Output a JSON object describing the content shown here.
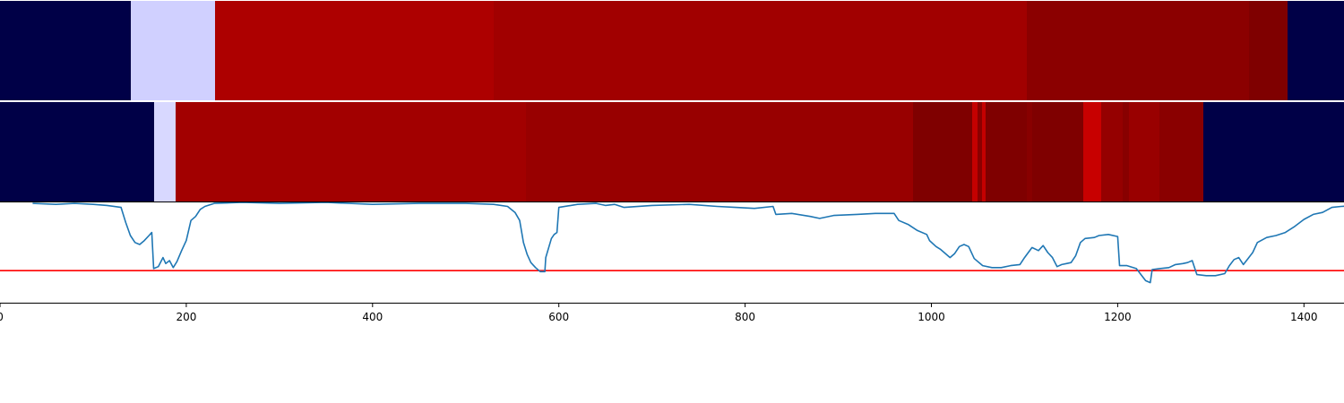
{
  "chart_data": [
    {
      "type": "heatmap",
      "segments": [
        {
          "start": 0,
          "end": 140,
          "color": "#000047"
        },
        {
          "start": 140,
          "end": 231,
          "color": "#d0d0ff"
        },
        {
          "start": 231,
          "end": 530,
          "color": "#ad0000"
        },
        {
          "start": 530,
          "end": 1102,
          "color": "#a10000"
        },
        {
          "start": 1102,
          "end": 1341,
          "color": "#8b0000"
        },
        {
          "start": 1341,
          "end": 1382,
          "color": "#7f0000"
        },
        {
          "start": 1382,
          "end": 1443,
          "color": "#000047"
        }
      ]
    },
    {
      "type": "heatmap",
      "segments": [
        {
          "start": 0,
          "end": 165,
          "color": "#000047"
        },
        {
          "start": 165,
          "end": 189,
          "color": "#d8d8ff"
        },
        {
          "start": 189,
          "end": 565,
          "color": "#a20000"
        },
        {
          "start": 565,
          "end": 980,
          "color": "#980000"
        },
        {
          "start": 980,
          "end": 1044,
          "color": "#7f0000"
        },
        {
          "start": 1044,
          "end": 1050,
          "color": "#c40000"
        },
        {
          "start": 1050,
          "end": 1054,
          "color": "#8a0000"
        },
        {
          "start": 1054,
          "end": 1058,
          "color": "#c40000"
        },
        {
          "start": 1058,
          "end": 1102,
          "color": "#7f0000"
        },
        {
          "start": 1102,
          "end": 1108,
          "color": "#880000"
        },
        {
          "start": 1108,
          "end": 1163,
          "color": "#7f0000"
        },
        {
          "start": 1163,
          "end": 1182,
          "color": "#c80000"
        },
        {
          "start": 1182,
          "end": 1205,
          "color": "#950000"
        },
        {
          "start": 1205,
          "end": 1212,
          "color": "#880000"
        },
        {
          "start": 1212,
          "end": 1245,
          "color": "#990000"
        },
        {
          "start": 1245,
          "end": 1292,
          "color": "#8a0000"
        },
        {
          "start": 1292,
          "end": 1443,
          "color": "#000047"
        }
      ]
    },
    {
      "type": "line",
      "xlim": [
        0,
        1443
      ],
      "ylim": [
        0,
        1
      ],
      "x_ticks": [
        0,
        200,
        400,
        600,
        800,
        1000,
        1200,
        1400
      ],
      "threshold": {
        "value": 0.32,
        "color": "#ff0000"
      },
      "series": [
        {
          "color": "#1f77b4",
          "points": [
            [
              35,
              0.99
            ],
            [
              60,
              0.98
            ],
            [
              80,
              0.99
            ],
            [
              100,
              0.98
            ],
            [
              115,
              0.97
            ],
            [
              130,
              0.95
            ],
            [
              135,
              0.8
            ],
            [
              140,
              0.67
            ],
            [
              145,
              0.6
            ],
            [
              150,
              0.58
            ],
            [
              155,
              0.62
            ],
            [
              160,
              0.67
            ],
            [
              163,
              0.7
            ],
            [
              165,
              0.34
            ],
            [
              170,
              0.36
            ],
            [
              175,
              0.45
            ],
            [
              178,
              0.39
            ],
            [
              182,
              0.42
            ],
            [
              186,
              0.35
            ],
            [
              190,
              0.41
            ],
            [
              195,
              0.52
            ],
            [
              200,
              0.62
            ],
            [
              205,
              0.82
            ],
            [
              210,
              0.86
            ],
            [
              215,
              0.93
            ],
            [
              220,
              0.96
            ],
            [
              230,
              0.99
            ],
            [
              260,
              1.0
            ],
            [
              300,
              0.99
            ],
            [
              350,
              1.0
            ],
            [
              400,
              0.98
            ],
            [
              450,
              0.99
            ],
            [
              500,
              0.99
            ],
            [
              530,
              0.98
            ],
            [
              545,
              0.96
            ],
            [
              553,
              0.9
            ],
            [
              558,
              0.82
            ],
            [
              562,
              0.6
            ],
            [
              566,
              0.48
            ],
            [
              570,
              0.4
            ],
            [
              575,
              0.35
            ],
            [
              580,
              0.31
            ],
            [
              585,
              0.31
            ],
            [
              586,
              0.45
            ],
            [
              592,
              0.64
            ],
            [
              595,
              0.68
            ],
            [
              598,
              0.7
            ],
            [
              600,
              0.95
            ],
            [
              620,
              0.98
            ],
            [
              640,
              0.99
            ],
            [
              650,
              0.97
            ],
            [
              660,
              0.98
            ],
            [
              670,
              0.95
            ],
            [
              700,
              0.97
            ],
            [
              740,
              0.98
            ],
            [
              770,
              0.96
            ],
            [
              790,
              0.95
            ],
            [
              810,
              0.94
            ],
            [
              830,
              0.96
            ],
            [
              833,
              0.88
            ],
            [
              850,
              0.89
            ],
            [
              870,
              0.86
            ],
            [
              880,
              0.84
            ],
            [
              895,
              0.87
            ],
            [
              920,
              0.88
            ],
            [
              940,
              0.89
            ],
            [
              960,
              0.89
            ],
            [
              965,
              0.82
            ],
            [
              975,
              0.78
            ],
            [
              985,
              0.72
            ],
            [
              995,
              0.68
            ],
            [
              998,
              0.62
            ],
            [
              1005,
              0.56
            ],
            [
              1010,
              0.53
            ],
            [
              1020,
              0.45
            ],
            [
              1025,
              0.49
            ],
            [
              1030,
              0.56
            ],
            [
              1035,
              0.58
            ],
            [
              1040,
              0.56
            ],
            [
              1046,
              0.44
            ],
            [
              1055,
              0.37
            ],
            [
              1065,
              0.35
            ],
            [
              1075,
              0.35
            ],
            [
              1085,
              0.37
            ],
            [
              1095,
              0.38
            ],
            [
              1100,
              0.45
            ],
            [
              1108,
              0.55
            ],
            [
              1115,
              0.52
            ],
            [
              1120,
              0.57
            ],
            [
              1125,
              0.5
            ],
            [
              1130,
              0.45
            ],
            [
              1135,
              0.36
            ],
            [
              1140,
              0.38
            ],
            [
              1145,
              0.39
            ],
            [
              1150,
              0.4
            ],
            [
              1155,
              0.47
            ],
            [
              1160,
              0.6
            ],
            [
              1165,
              0.64
            ],
            [
              1175,
              0.65
            ],
            [
              1180,
              0.67
            ],
            [
              1190,
              0.68
            ],
            [
              1200,
              0.66
            ],
            [
              1202,
              0.37
            ],
            [
              1210,
              0.37
            ],
            [
              1220,
              0.34
            ],
            [
              1225,
              0.28
            ],
            [
              1230,
              0.22
            ],
            [
              1235,
              0.2
            ],
            [
              1237,
              0.33
            ],
            [
              1245,
              0.34
            ],
            [
              1255,
              0.35
            ],
            [
              1262,
              0.38
            ],
            [
              1270,
              0.39
            ],
            [
              1275,
              0.4
            ],
            [
              1280,
              0.42
            ],
            [
              1285,
              0.28
            ],
            [
              1295,
              0.27
            ],
            [
              1305,
              0.27
            ],
            [
              1315,
              0.29
            ],
            [
              1320,
              0.37
            ],
            [
              1325,
              0.43
            ],
            [
              1330,
              0.45
            ],
            [
              1335,
              0.38
            ],
            [
              1340,
              0.44
            ],
            [
              1345,
              0.5
            ],
            [
              1350,
              0.6
            ],
            [
              1360,
              0.65
            ],
            [
              1370,
              0.67
            ],
            [
              1380,
              0.7
            ],
            [
              1390,
              0.76
            ],
            [
              1400,
              0.83
            ],
            [
              1410,
              0.88
            ],
            [
              1420,
              0.9
            ],
            [
              1430,
              0.95
            ],
            [
              1440,
              0.96
            ],
            [
              1455,
              0.97
            ],
            [
              1462,
              1.0
            ]
          ]
        }
      ]
    }
  ]
}
